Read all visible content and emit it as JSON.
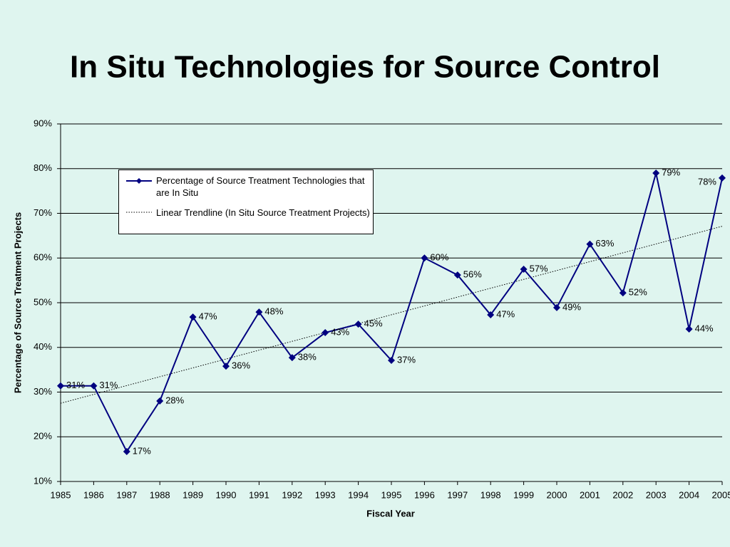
{
  "chart_data": {
    "type": "line",
    "title": "In Situ Technologies for Source Control",
    "x_label": "Fiscal Year",
    "y_label": "Percentage of Source Treatment Projects",
    "x": [
      1985,
      1986,
      1987,
      1988,
      1989,
      1990,
      1991,
      1992,
      1993,
      1994,
      1995,
      1996,
      1997,
      1998,
      1999,
      2000,
      2001,
      2002,
      2003,
      2004,
      2005
    ],
    "xlim": [
      1985,
      2005
    ],
    "xticks": [
      1985,
      1986,
      1987,
      1988,
      1989,
      1990,
      1991,
      1992,
      1993,
      1994,
      1995,
      1996,
      1997,
      1998,
      1999,
      2000,
      2001,
      2002,
      2003,
      2004,
      2005
    ],
    "ylim": [
      10,
      90
    ],
    "yticks": [
      {
        "value": 10,
        "label": "10%"
      },
      {
        "value": 20,
        "label": "20%"
      },
      {
        "value": 30,
        "label": "30%"
      },
      {
        "value": 40,
        "label": "40%"
      },
      {
        "value": 50,
        "label": "50%"
      },
      {
        "value": 60,
        "label": "60%"
      },
      {
        "value": 70,
        "label": "70%"
      },
      {
        "value": 80,
        "label": "80%"
      },
      {
        "value": 90,
        "label": "90%"
      }
    ],
    "grid": true,
    "series": [
      {
        "name": "Percentage of Source Treatment Technologies that are In Situ",
        "color": "#000080",
        "values": [
          31.4,
          31.4,
          16.7,
          28.0,
          46.8,
          35.8,
          47.9,
          37.7,
          43.3,
          45.2,
          37.1,
          60.0,
          56.2,
          47.3,
          57.5,
          48.9,
          63.1,
          52.2,
          79.0,
          44.1,
          77.9
        ],
        "value_labels": [
          "31%",
          "31%",
          "17%",
          "28%",
          "47%",
          "36%",
          "48%",
          "38%",
          "43%",
          "45%",
          "37%",
          "60%",
          "56%",
          "47%",
          "57%",
          "49%",
          "63%",
          "52%",
          "79%",
          "44%",
          "78%"
        ]
      }
    ],
    "trendline": {
      "name": "Linear Trendline (In Situ Source Treatment Projects)",
      "color": "#000000",
      "x": [
        1985,
        2005
      ],
      "values": [
        27.5,
        67.1
      ]
    }
  }
}
